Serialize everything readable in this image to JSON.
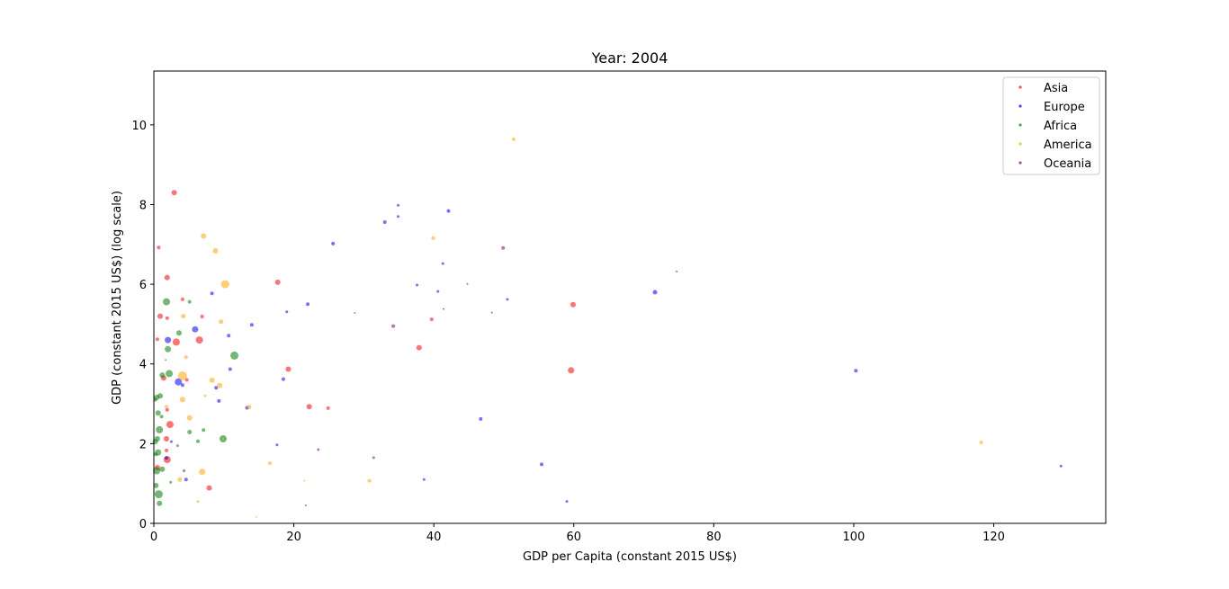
{
  "chart_data": {
    "type": "scatter",
    "title": "Year: 2004",
    "xlabel": "GDP per Capita (constant 2015 US$)",
    "ylabel": "GDP (constant 2015 US$) (log scale)",
    "xlim": [
      0,
      136
    ],
    "ylim": [
      0,
      11.35
    ],
    "x_ticks": [
      0,
      20,
      40,
      60,
      80,
      100,
      120
    ],
    "y_ticks": [
      0,
      2,
      4,
      6,
      8,
      10
    ],
    "grid": false,
    "legend_position": "top-right",
    "series": [
      {
        "name": "Asia",
        "color": "#ff0000",
        "points": [
          {
            "x": 2.9,
            "y": 8.3,
            "size": 3
          },
          {
            "x": 0.7,
            "y": 6.92,
            "size": 2
          },
          {
            "x": 1.9,
            "y": 6.17,
            "size": 3
          },
          {
            "x": 17.7,
            "y": 6.05,
            "size": 3
          },
          {
            "x": 4.1,
            "y": 5.62,
            "size": 2
          },
          {
            "x": 59.9,
            "y": 5.49,
            "size": 3
          },
          {
            "x": 0.9,
            "y": 5.2,
            "size": 3
          },
          {
            "x": 1.9,
            "y": 5.15,
            "size": 2
          },
          {
            "x": 6.9,
            "y": 5.19,
            "size": 2
          },
          {
            "x": 39.7,
            "y": 5.12,
            "size": 2
          },
          {
            "x": 28.7,
            "y": 5.28,
            "size": 1
          },
          {
            "x": 0.5,
            "y": 4.62,
            "size": 2
          },
          {
            "x": 6.5,
            "y": 4.6,
            "size": 4
          },
          {
            "x": 3.2,
            "y": 4.55,
            "size": 4
          },
          {
            "x": 37.9,
            "y": 4.41,
            "size": 3
          },
          {
            "x": 19.2,
            "y": 3.87,
            "size": 3
          },
          {
            "x": 59.6,
            "y": 3.84,
            "size": 3.5
          },
          {
            "x": 1.4,
            "y": 3.65,
            "size": 3
          },
          {
            "x": 4.7,
            "y": 3.6,
            "size": 2
          },
          {
            "x": 22.2,
            "y": 2.93,
            "size": 3
          },
          {
            "x": 24.9,
            "y": 2.89,
            "size": 2
          },
          {
            "x": 1.9,
            "y": 2.85,
            "size": 2
          },
          {
            "x": 2.3,
            "y": 2.48,
            "size": 4
          },
          {
            "x": 1.8,
            "y": 2.12,
            "size": 3
          },
          {
            "x": 1.8,
            "y": 1.83,
            "size": 2
          },
          {
            "x": 1.9,
            "y": 1.6,
            "size": 4
          },
          {
            "x": 0.5,
            "y": 1.4,
            "size": 3
          },
          {
            "x": 7.9,
            "y": 0.89,
            "size": 3
          }
        ]
      },
      {
        "name": "Europe",
        "color": "#0000ff",
        "points": [
          {
            "x": 34.9,
            "y": 7.98,
            "size": 1.5
          },
          {
            "x": 42.1,
            "y": 7.84,
            "size": 2
          },
          {
            "x": 33.0,
            "y": 7.56,
            "size": 2
          },
          {
            "x": 34.9,
            "y": 7.7,
            "size": 1.5
          },
          {
            "x": 25.6,
            "y": 7.02,
            "size": 2
          },
          {
            "x": 41.3,
            "y": 6.52,
            "size": 1.5
          },
          {
            "x": 74.7,
            "y": 6.32,
            "size": 1
          },
          {
            "x": 44.8,
            "y": 6.01,
            "size": 1
          },
          {
            "x": 37.6,
            "y": 5.98,
            "size": 1.5
          },
          {
            "x": 71.6,
            "y": 5.8,
            "size": 2.5
          },
          {
            "x": 40.6,
            "y": 5.82,
            "size": 1.5
          },
          {
            "x": 8.3,
            "y": 5.77,
            "size": 2
          },
          {
            "x": 50.5,
            "y": 5.62,
            "size": 1.5
          },
          {
            "x": 22.0,
            "y": 5.5,
            "size": 2
          },
          {
            "x": 41.4,
            "y": 5.38,
            "size": 1
          },
          {
            "x": 19.0,
            "y": 5.31,
            "size": 1.5
          },
          {
            "x": 48.3,
            "y": 5.29,
            "size": 1
          },
          {
            "x": 14.0,
            "y": 4.98,
            "size": 2
          },
          {
            "x": 5.9,
            "y": 4.87,
            "size": 3.5
          },
          {
            "x": 10.7,
            "y": 4.71,
            "size": 2
          },
          {
            "x": 2.0,
            "y": 4.6,
            "size": 3.5
          },
          {
            "x": 10.9,
            "y": 3.87,
            "size": 2
          },
          {
            "x": 100.3,
            "y": 3.83,
            "size": 2
          },
          {
            "x": 18.5,
            "y": 3.62,
            "size": 2
          },
          {
            "x": 3.5,
            "y": 3.55,
            "size": 4
          },
          {
            "x": 4.1,
            "y": 3.47,
            "size": 2
          },
          {
            "x": 8.9,
            "y": 3.4,
            "size": 2
          },
          {
            "x": 9.3,
            "y": 3.07,
            "size": 2
          },
          {
            "x": 13.3,
            "y": 2.9,
            "size": 2
          },
          {
            "x": 46.7,
            "y": 2.62,
            "size": 2
          },
          {
            "x": 17.6,
            "y": 1.97,
            "size": 1.5
          },
          {
            "x": 2.5,
            "y": 2.05,
            "size": 1.5
          },
          {
            "x": 55.4,
            "y": 1.48,
            "size": 2
          },
          {
            "x": 129.6,
            "y": 1.44,
            "size": 1.5
          },
          {
            "x": 1.8,
            "y": 1.64,
            "size": 2
          },
          {
            "x": 4.6,
            "y": 1.1,
            "size": 2
          },
          {
            "x": 38.6,
            "y": 1.1,
            "size": 1.5
          },
          {
            "x": 59.0,
            "y": 0.55,
            "size": 1.5
          }
        ]
      },
      {
        "name": "Africa",
        "color": "#008000",
        "points": [
          {
            "x": 1.8,
            "y": 5.56,
            "size": 4
          },
          {
            "x": 5.1,
            "y": 5.56,
            "size": 2
          },
          {
            "x": 3.6,
            "y": 4.78,
            "size": 3
          },
          {
            "x": 2.0,
            "y": 4.37,
            "size": 3.5
          },
          {
            "x": 11.5,
            "y": 4.21,
            "size": 4.5
          },
          {
            "x": 1.7,
            "y": 4.1,
            "size": 1
          },
          {
            "x": 2.2,
            "y": 3.76,
            "size": 4
          },
          {
            "x": 1.2,
            "y": 3.72,
            "size": 3
          },
          {
            "x": 0.9,
            "y": 3.2,
            "size": 3
          },
          {
            "x": 0.4,
            "y": 3.16,
            "size": 3
          },
          {
            "x": 0.2,
            "y": 3.1,
            "size": 2
          },
          {
            "x": 0.6,
            "y": 2.77,
            "size": 3
          },
          {
            "x": 1.1,
            "y": 2.68,
            "size": 2
          },
          {
            "x": 0.8,
            "y": 2.35,
            "size": 4
          },
          {
            "x": 7.1,
            "y": 2.34,
            "size": 2
          },
          {
            "x": 5.1,
            "y": 2.29,
            "size": 2.5
          },
          {
            "x": 0.5,
            "y": 2.12,
            "size": 3
          },
          {
            "x": 9.9,
            "y": 2.12,
            "size": 4
          },
          {
            "x": 6.3,
            "y": 2.06,
            "size": 2
          },
          {
            "x": 0.2,
            "y": 2.05,
            "size": 3
          },
          {
            "x": 3.4,
            "y": 1.95,
            "size": 1.5
          },
          {
            "x": 0.6,
            "y": 1.78,
            "size": 3.5
          },
          {
            "x": 0.3,
            "y": 1.73,
            "size": 2
          },
          {
            "x": 1.2,
            "y": 1.36,
            "size": 3
          },
          {
            "x": 0.4,
            "y": 1.32,
            "size": 4
          },
          {
            "x": 2.4,
            "y": 1.03,
            "size": 1.5
          },
          {
            "x": 0.3,
            "y": 0.95,
            "size": 3
          },
          {
            "x": 0.7,
            "y": 0.73,
            "size": 4.5
          },
          {
            "x": 0.8,
            "y": 0.5,
            "size": 3
          }
        ]
      },
      {
        "name": "America",
        "color": "#ffa500",
        "points": [
          {
            "x": 51.4,
            "y": 9.64,
            "size": 2
          },
          {
            "x": 7.1,
            "y": 7.21,
            "size": 3
          },
          {
            "x": 39.9,
            "y": 7.16,
            "size": 2
          },
          {
            "x": 8.8,
            "y": 6.84,
            "size": 3
          },
          {
            "x": 10.2,
            "y": 6.0,
            "size": 4.5
          },
          {
            "x": 4.2,
            "y": 5.2,
            "size": 2.5
          },
          {
            "x": 9.6,
            "y": 5.06,
            "size": 2.5
          },
          {
            "x": 4.6,
            "y": 4.17,
            "size": 2
          },
          {
            "x": 4.1,
            "y": 3.7,
            "size": 5
          },
          {
            "x": 8.3,
            "y": 3.59,
            "size": 3
          },
          {
            "x": 9.4,
            "y": 3.46,
            "size": 3
          },
          {
            "x": 7.3,
            "y": 3.2,
            "size": 1.5
          },
          {
            "x": 4.1,
            "y": 3.11,
            "size": 3
          },
          {
            "x": 13.6,
            "y": 2.92,
            "size": 2.5
          },
          {
            "x": 1.8,
            "y": 2.93,
            "size": 2
          },
          {
            "x": 5.1,
            "y": 2.65,
            "size": 3
          },
          {
            "x": 118.2,
            "y": 2.03,
            "size": 2
          },
          {
            "x": 16.6,
            "y": 1.51,
            "size": 2
          },
          {
            "x": 6.9,
            "y": 1.29,
            "size": 3.5
          },
          {
            "x": 3.7,
            "y": 1.1,
            "size": 2.5
          },
          {
            "x": 21.5,
            "y": 1.07,
            "size": 1
          },
          {
            "x": 30.8,
            "y": 1.07,
            "size": 2
          },
          {
            "x": 6.3,
            "y": 0.55,
            "size": 1.5
          },
          {
            "x": 14.6,
            "y": 0.16,
            "size": 1
          }
        ]
      },
      {
        "name": "Oceania",
        "color": "#800080",
        "points": [
          {
            "x": 49.9,
            "y": 6.91,
            "size": 2
          },
          {
            "x": 34.2,
            "y": 4.95,
            "size": 2
          },
          {
            "x": 23.5,
            "y": 1.85,
            "size": 1.5
          },
          {
            "x": 31.4,
            "y": 1.65,
            "size": 1.5
          },
          {
            "x": 4.3,
            "y": 1.32,
            "size": 1.5
          },
          {
            "x": 21.7,
            "y": 0.45,
            "size": 1
          }
        ]
      }
    ]
  }
}
